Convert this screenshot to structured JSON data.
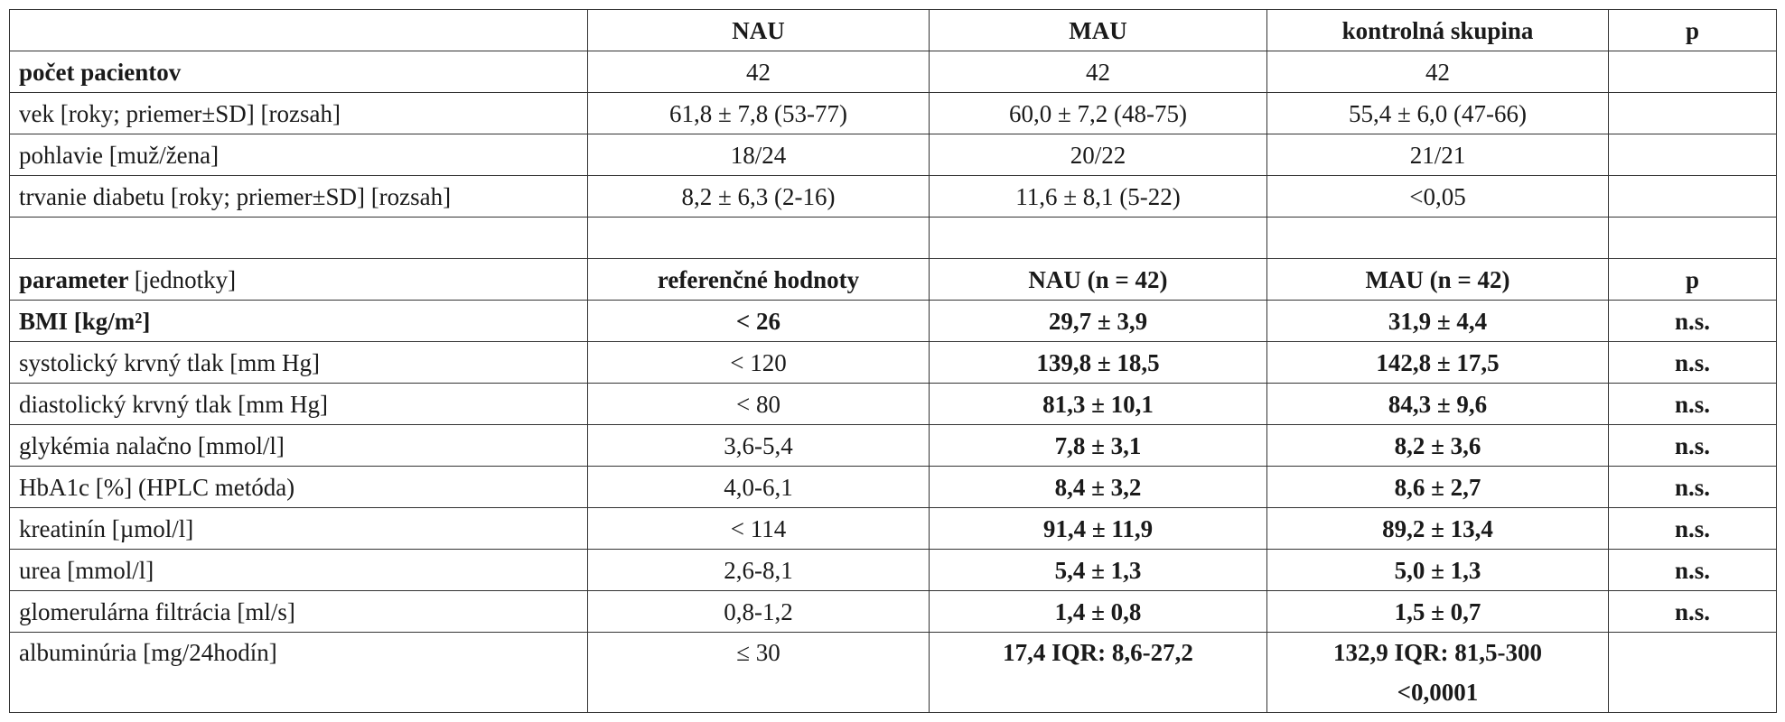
{
  "table": {
    "rows": [
      [
        null,
        "NAU",
        "MAU",
        "kontrolná skupina",
        "p"
      ],
      [
        "počet pacientov",
        "42",
        "42",
        "42",
        null
      ],
      [
        "vek [roky; priemer±SD] [rozsah]",
        "61,8 ± 7,8 (53-77)",
        "60,0 ± 7,2 (48-75)",
        "55,4 ± 6,0 (47-66)",
        null
      ],
      [
        "pohlavie [muž/žena]",
        "18/24",
        "20/22",
        "21/21",
        null
      ],
      [
        "trvanie diabetu [roky; priemer±SD] [rozsah]",
        "8,2 ± 6,3 (2-16)",
        "11,6 ± 8,1 (5-22)",
        "<0,05",
        null
      ],
      [
        null,
        null,
        null,
        null,
        null
      ],
      [
        {
          "bold": "parameter",
          "text": "[jednotky]"
        },
        "referenčné hodnoty",
        "NAU  (n = 42)",
        "MAU (n = 42)",
        "p"
      ],
      [
        "BMI [kg/m²]",
        "< 26",
        "29,7 ± 3,9",
        "31,9 ± 4,4",
        "n.s."
      ],
      [
        "systolický krvný tlak [mm Hg]",
        "< 120",
        "139,8 ± 18,5",
        "142,8 ± 17,5",
        "n.s."
      ],
      [
        "diastolický krvný tlak [mm Hg]",
        "< 80",
        "81,3 ± 10,1",
        "84,3 ± 9,6",
        "n.s."
      ],
      [
        "glykémia nalačno [mmol/l]",
        "3,6-5,4",
        "7,8 ± 3,1",
        "8,2 ± 3,6",
        "n.s."
      ],
      [
        "HbA1c [%] (HPLC metóda)",
        "4,0-6,1",
        "8,4 ± 3,2",
        "8,6 ± 2,7",
        "n.s."
      ],
      [
        "kreatinín [µmol/l]",
        "< 114",
        "91,4 ± 11,9",
        "89,2 ± 13,4",
        "n.s."
      ],
      [
        "urea [mmol/l]",
        "2,6-8,1",
        "5,4 ± 1,3",
        "5,0 ± 1,3",
        "n.s."
      ],
      [
        "glomerulárna filtrácia [ml/s]",
        "0,8-1,2",
        "1,4 ± 0,8",
        "1,5 ± 0,7",
        "n.s."
      ],
      [
        "albuminúria [mg/24hodín]",
        "≤ 30",
        "17,4 IQR: 8,6-27,2",
        "132,9 IQR: 81,5-300\n<0,0001",
        null
      ]
    ]
  }
}
